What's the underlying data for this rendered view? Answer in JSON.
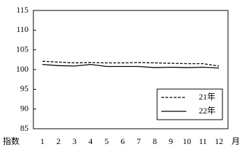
{
  "chart_data": {
    "type": "line",
    "x_label": "月",
    "y_label": "指数",
    "categories": [
      "1",
      "2",
      "3",
      "4",
      "5",
      "6",
      "7",
      "8",
      "9",
      "10",
      "11",
      "12"
    ],
    "series": [
      {
        "name": "21年",
        "color": "#000000",
        "dashed": true,
        "values": [
          102.1,
          101.9,
          101.7,
          101.8,
          101.7,
          101.7,
          101.8,
          101.7,
          101.6,
          101.5,
          101.5,
          100.9
        ]
      },
      {
        "name": "22年",
        "color": "#000000",
        "dashed": false,
        "values": [
          101.3,
          101.0,
          100.9,
          101.3,
          100.8,
          100.8,
          100.8,
          100.5,
          100.6,
          100.5,
          100.6,
          100.4
        ]
      }
    ],
    "ylim": [
      85,
      115
    ],
    "yticks": [
      85,
      90,
      95,
      100,
      105,
      110,
      115
    ],
    "grid": false,
    "legend": "lower-right"
  }
}
